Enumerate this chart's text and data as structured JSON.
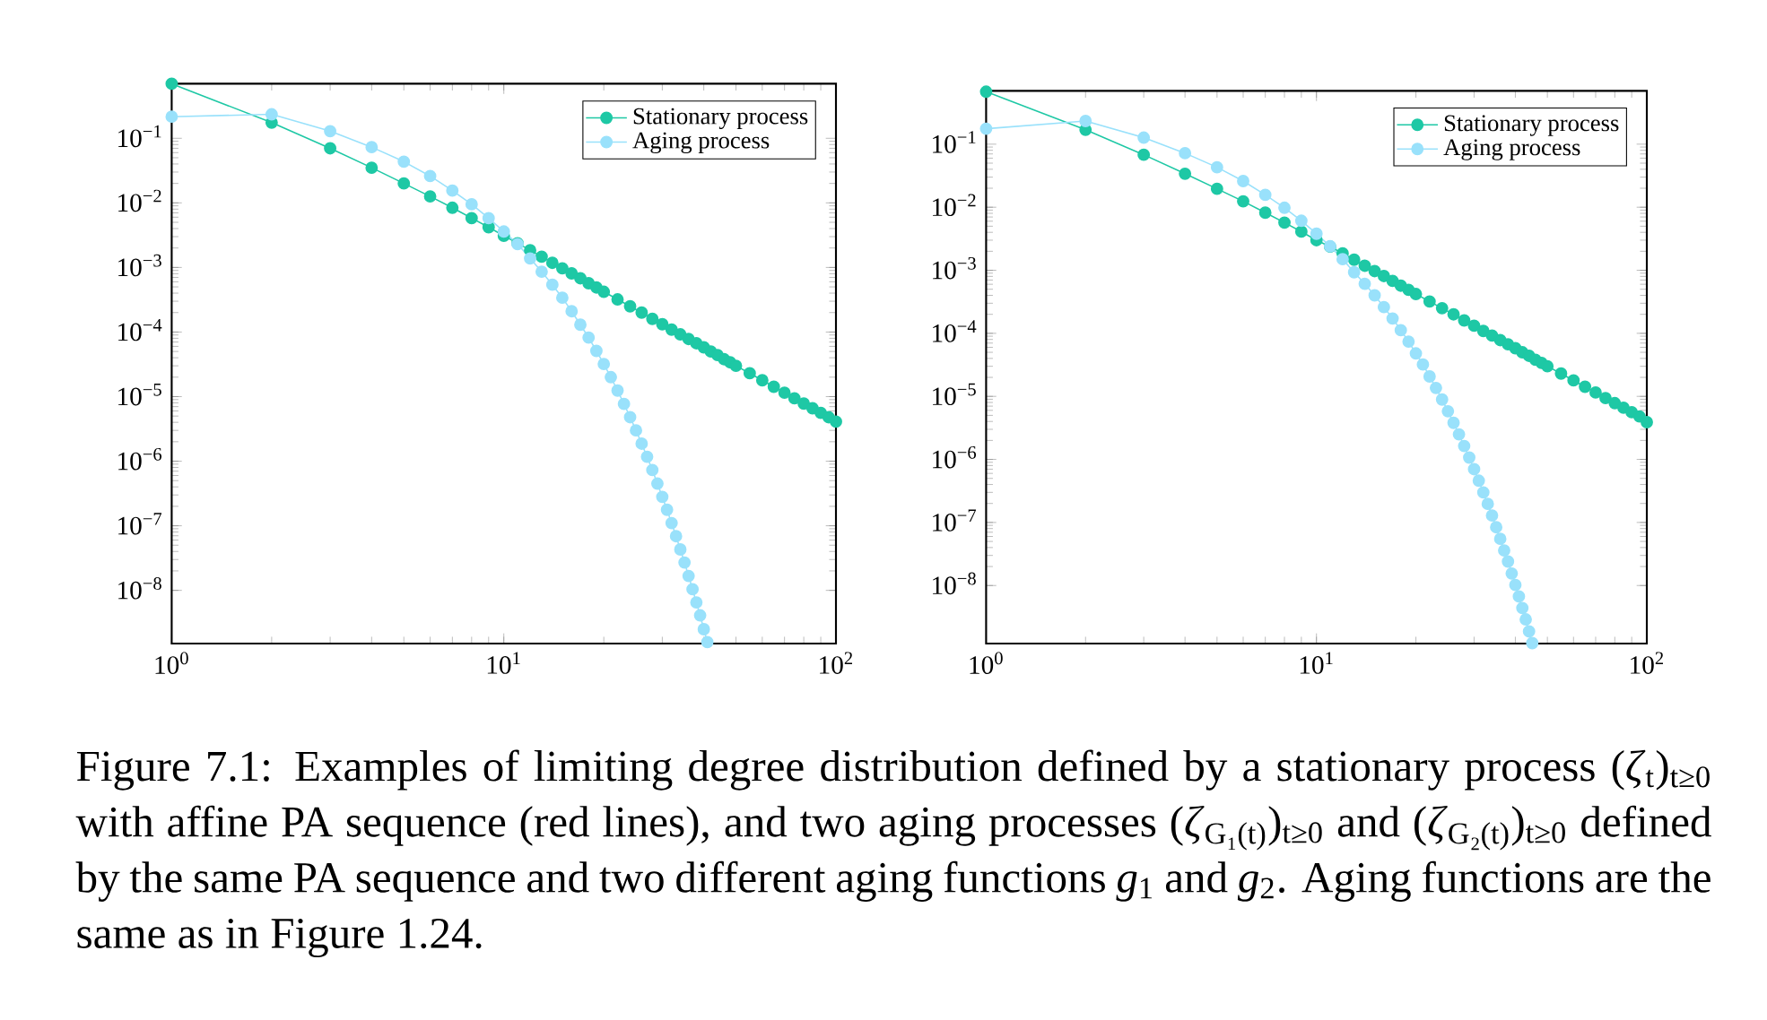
{
  "chart_data": [
    {
      "type": "line",
      "log": "xy",
      "marker": "circle",
      "line_style": "solid",
      "legend": "top right",
      "xlim": [
        1,
        100
      ],
      "ylim": [
        1.5e-09,
        0.7
      ],
      "xticks": [
        {
          "value": 1,
          "label": "10$^{0}$"
        },
        {
          "value": 10,
          "label": "10$^{1}$"
        },
        {
          "value": 100,
          "label": "10$^{2}$"
        }
      ],
      "yticks": [
        {
          "value": 1e-08,
          "label": "10$^{−8}$"
        },
        {
          "value": 1e-07,
          "label": "10$^{−7}$"
        },
        {
          "value": 1e-06,
          "label": "10$^{−6}$"
        },
        {
          "value": 1e-05,
          "label": "10$^{−5}$"
        },
        {
          "value": 0.0001,
          "label": "10$^{−4}$"
        },
        {
          "value": 0.001,
          "label": "10$^{−3}$"
        },
        {
          "value": 0.01,
          "label": "10$^{−2}$"
        },
        {
          "value": 0.1,
          "label": "10$^{−1}$"
        }
      ],
      "series": [
        {
          "name": "Stationary process",
          "color": "#1ec8a5",
          "x": [
            1,
            2,
            3,
            4,
            5,
            6,
            7,
            8,
            9,
            10,
            11,
            12,
            13,
            14,
            15,
            16,
            17,
            18,
            19,
            20,
            22,
            24,
            26,
            28,
            30,
            32,
            34,
            36,
            38,
            40,
            42,
            44,
            46,
            48,
            50,
            55,
            60,
            65,
            70,
            75,
            80,
            85,
            90,
            95,
            100
          ],
          "values": [
            0.7,
            0.175,
            0.07,
            0.035,
            0.02,
            0.0126,
            0.0084,
            0.0058,
            0.0042,
            0.0031,
            0.00237,
            0.00185,
            0.00147,
            0.00118,
            0.00097,
            0.00081,
            0.00068,
            0.00057,
            0.00049,
            0.00042,
            0.00032,
            0.00025,
            0.0002,
            0.00016,
            0.000132,
            0.000109,
            9.2e-05,
            7.8e-05,
            6.7e-05,
            5.8e-05,
            5e-05,
            4.4e-05,
            3.8e-05,
            3.4e-05,
            3e-05,
            2.3e-05,
            1.79e-05,
            1.42e-05,
            1.15e-05,
            9.4e-06,
            7.8e-06,
            6.6e-06,
            5.6e-06,
            4.8e-06,
            4.1e-06
          ]
        },
        {
          "name": "Aging process",
          "color": "#99e1fb",
          "x": [
            1,
            2,
            3,
            4,
            5,
            6,
            7,
            8,
            9,
            10,
            11,
            12,
            13,
            14,
            15,
            16,
            17,
            18,
            19,
            20,
            21,
            22,
            23,
            24,
            25,
            26,
            27,
            28,
            29,
            30,
            31,
            32,
            33,
            34,
            35,
            36,
            37,
            38,
            39,
            40,
            41
          ],
          "values": [
            0.216,
            0.235,
            0.129,
            0.073,
            0.0435,
            0.026,
            0.0155,
            0.0095,
            0.0058,
            0.0036,
            0.0023,
            0.00138,
            0.00086,
            0.00054,
            0.00034,
            0.00021,
            0.00013,
            8.2e-05,
            5.1e-05,
            3.2e-05,
            2e-05,
            1.24e-05,
            7.7e-06,
            4.8e-06,
            3e-06,
            1.87e-06,
            1.17e-06,
            7.3e-07,
            4.5e-07,
            2.8e-07,
            1.77e-07,
            1.1e-07,
            6.9e-08,
            4.3e-08,
            2.7e-08,
            1.67e-08,
            1.04e-08,
            6.5e-09,
            4.1e-09,
            2.5e-09,
            1.58e-09
          ]
        }
      ]
    },
    {
      "type": "line",
      "log": "xy",
      "marker": "circle",
      "line_style": "solid",
      "legend": "top right",
      "xlim": [
        1,
        100
      ],
      "ylim": [
        1.2e-09,
        0.7
      ],
      "xticks": [
        {
          "value": 1,
          "label": "10$^{0}$"
        },
        {
          "value": 10,
          "label": "10$^{1}$"
        },
        {
          "value": 100,
          "label": "10$^{2}$"
        }
      ],
      "yticks": [
        {
          "value": 1e-08,
          "label": "10$^{−8}$"
        },
        {
          "value": 1e-07,
          "label": "10$^{−7}$"
        },
        {
          "value": 1e-06,
          "label": "10$^{−6}$"
        },
        {
          "value": 1e-05,
          "label": "10$^{−5}$"
        },
        {
          "value": 0.0001,
          "label": "10$^{−4}$"
        },
        {
          "value": 0.001,
          "label": "10$^{−3}$"
        },
        {
          "value": 0.01,
          "label": "10$^{−2}$"
        },
        {
          "value": 0.1,
          "label": "10$^{−1}$"
        }
      ],
      "annotations": [
        "Figure 7.1: Examples of limiting degree distribution defined by a stationary process (*ζ*$_{t}$)$_{t≥0}$ with affine PA sequence (red lines), and two aging processes (*ζ*$_{G₁(t)}$)$_{t≥0}$ and (*ζ*$_{G₂(t)}$)$_{t≥0}$ defined by the same PA sequence and two different aging functions *g*$_{1}$ and *g*$_{2}$. Aging functions are the same as in Figure 1.24."
      ],
      "series": [
        {
          "name": "Stationary process",
          "color": "#1ec8a5",
          "x": [
            1,
            2,
            3,
            4,
            5,
            6,
            7,
            8,
            9,
            10,
            11,
            12,
            13,
            14,
            15,
            16,
            17,
            18,
            19,
            20,
            22,
            24,
            26,
            28,
            30,
            32,
            34,
            36,
            38,
            40,
            42,
            44,
            46,
            48,
            50,
            55,
            60,
            65,
            70,
            75,
            80,
            85,
            90,
            95,
            100
          ],
          "values": [
            0.68,
            0.169,
            0.068,
            0.034,
            0.0196,
            0.0124,
            0.0082,
            0.0057,
            0.0041,
            0.003,
            0.00237,
            0.00185,
            0.00147,
            0.00118,
            0.00097,
            0.00081,
            0.00068,
            0.00057,
            0.00049,
            0.00042,
            0.00032,
            0.00025,
            0.0002,
            0.00016,
            0.000132,
            0.000109,
            9.2e-05,
            7.8e-05,
            6.7e-05,
            5.8e-05,
            5e-05,
            4.4e-05,
            3.8e-05,
            3.4e-05,
            3e-05,
            2.3e-05,
            1.79e-05,
            1.42e-05,
            1.15e-05,
            9.4e-06,
            7.8e-06,
            6.6e-06,
            5.6e-06,
            4.8e-06,
            3.9e-06
          ]
        },
        {
          "name": "Aging process",
          "color": "#99e1fb",
          "x": [
            1,
            2,
            3,
            4,
            5,
            6,
            7,
            8,
            9,
            10,
            11,
            12,
            13,
            14,
            15,
            16,
            17,
            18,
            19,
            20,
            21,
            22,
            23,
            24,
            25,
            26,
            27,
            28,
            29,
            30,
            31,
            32,
            33,
            34,
            35,
            36,
            37,
            38,
            39,
            40,
            41,
            42,
            43,
            44,
            45
          ],
          "values": [
            0.176,
            0.233,
            0.127,
            0.072,
            0.043,
            0.026,
            0.0157,
            0.0098,
            0.0061,
            0.0038,
            0.0024,
            0.0015,
            0.00093,
            0.00061,
            0.0004,
            0.00026,
            0.000172,
            0.000112,
            7.4e-05,
            4.8e-05,
            3.2e-05,
            2.07e-05,
            1.36e-05,
            8.9e-06,
            5.8e-06,
            3.8e-06,
            2.5e-06,
            1.63e-06,
            1.07e-06,
            7e-07,
            4.6e-07,
            3e-07,
            1.97e-07,
            1.29e-07,
            8.4e-08,
            5.5e-08,
            3.6e-08,
            2.4e-08,
            1.55e-08,
            1.02e-08,
            6.7e-09,
            4.4e-09,
            2.9e-09,
            1.87e-09,
            1.22e-09
          ]
        }
      ]
    }
  ]
}
